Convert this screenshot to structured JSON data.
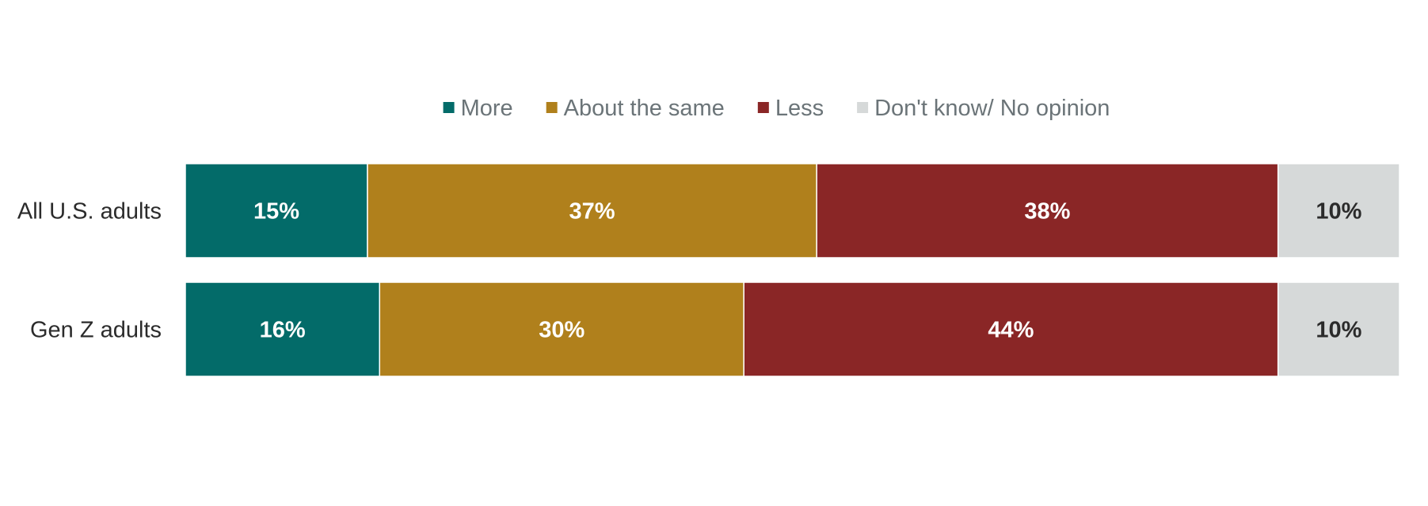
{
  "chart_data": {
    "type": "bar",
    "orientation": "horizontal",
    "stacked": true,
    "categories": [
      "All U.S. adults",
      "Gen Z adults"
    ],
    "series": [
      {
        "name": "More",
        "values": [
          15,
          16
        ],
        "color": "#036b69",
        "label_color": "#ffffff"
      },
      {
        "name": "About the same",
        "values": [
          37,
          30
        ],
        "color": "#b0801c",
        "label_color": "#ffffff"
      },
      {
        "name": "Less",
        "values": [
          38,
          44
        ],
        "color": "#8a2626",
        "label_color": "#ffffff"
      },
      {
        "name": "Don't know/ No opinion",
        "values": [
          10,
          10
        ],
        "color": "#d6d9d9",
        "label_color": "#2b2b2b"
      }
    ],
    "value_suffix": "%",
    "xlim": [
      0,
      100
    ],
    "legend_position": "top",
    "grid": false
  }
}
